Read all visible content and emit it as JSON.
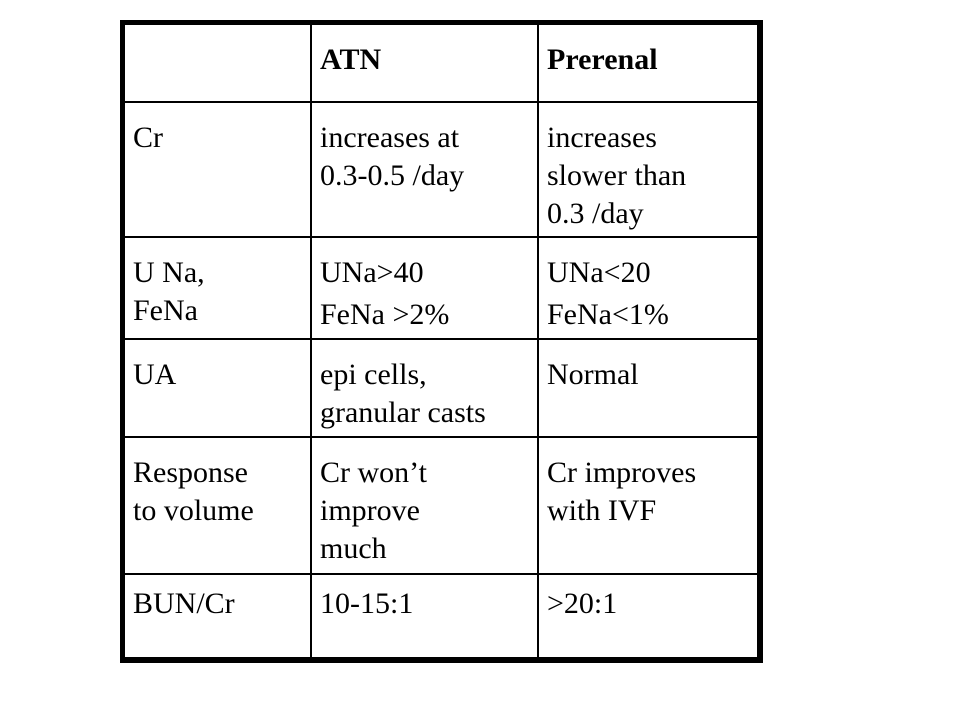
{
  "table": {
    "headers": [
      "",
      "ATN",
      "Prerenal"
    ],
    "rows": [
      {
        "label": "Cr",
        "atn": [
          "increases at\n0.3-0.5 /day"
        ],
        "prerenal": [
          "increases\nslower than\n0.3 /day"
        ]
      },
      {
        "label": "U Na,\nFeNa",
        "atn": [
          "UNa>40",
          "FeNa >2%"
        ],
        "prerenal": [
          "UNa<20",
          "FeNa<1%"
        ]
      },
      {
        "label": "UA",
        "atn": [
          "epi cells,\ngranular casts"
        ],
        "prerenal": [
          "Normal"
        ]
      },
      {
        "label": "Response\nto volume",
        "atn": [
          "Cr won’t\nimprove\nmuch"
        ],
        "prerenal": [
          "Cr improves\nwith IVF"
        ]
      },
      {
        "label": "BUN/Cr",
        "atn": [
          "10-15:1"
        ],
        "prerenal": [
          ">20:1"
        ]
      }
    ]
  }
}
